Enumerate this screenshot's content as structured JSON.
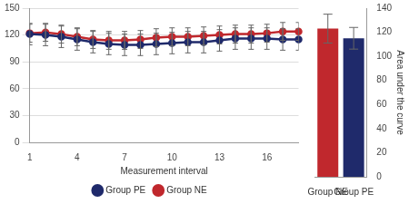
{
  "chart_data": [
    {
      "type": "line",
      "x_label": "Measurement interval",
      "categories": [
        1,
        null,
        null,
        4,
        null,
        null,
        7,
        null,
        null,
        10,
        null,
        null,
        13,
        null,
        null,
        16,
        null,
        null
      ],
      "series": [
        {
          "name": "Group PE",
          "color": "#1f2a6b",
          "marker": "circle",
          "values": [
            121,
            120,
            118,
            115,
            112,
            110,
            109,
            109,
            110,
            111,
            112,
            112,
            114,
            116,
            116,
            116,
            115,
            115
          ],
          "errors": [
            12,
            12,
            12,
            12,
            12,
            12,
            12,
            12,
            12,
            12,
            12,
            12,
            12,
            12,
            12,
            12,
            12,
            12
          ]
        },
        {
          "name": "Group NE",
          "color": "#c0282d",
          "marker": "circle",
          "values": [
            122,
            123,
            121,
            118,
            115,
            114,
            114,
            115,
            117,
            118,
            118,
            119,
            120,
            121,
            121,
            122,
            124,
            124
          ],
          "errors": [
            10,
            10,
            10,
            10,
            10,
            10,
            10,
            10,
            10,
            10,
            10,
            10,
            10,
            10,
            10,
            10,
            10,
            10
          ]
        }
      ],
      "ylim": [
        0,
        150
      ],
      "yticks": [
        0,
        30,
        60,
        90,
        120,
        150
      ],
      "grid": true,
      "legend": "bottom"
    },
    {
      "type": "bar",
      "y_label": "Area under the curve",
      "categories": [
        "Group NE",
        "Group PE"
      ],
      "values": [
        123,
        115
      ],
      "errors": [
        12,
        9
      ],
      "colors": [
        "#c0282d",
        "#1f2a6b"
      ],
      "ylim": [
        0,
        140
      ],
      "yticks": [
        0,
        20,
        40,
        60,
        80,
        100,
        120,
        140
      ],
      "grid": false
    }
  ]
}
